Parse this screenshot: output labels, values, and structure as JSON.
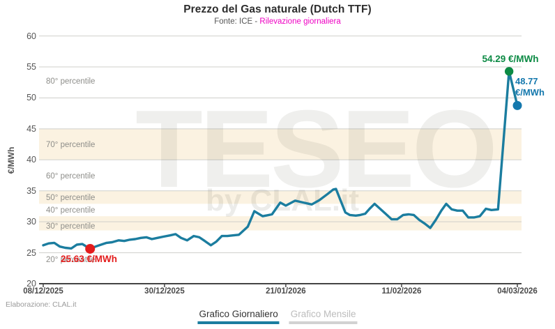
{
  "header": {
    "title": "Prezzo del Gas naturale (Dutch TTF)",
    "subtitle_prefix": "Fonte: ICE - ",
    "subtitle_highlight": "Rilevazione giornaliera"
  },
  "footer": {
    "credit": "Elaborazione: CLAL.it"
  },
  "tabs": [
    {
      "label": "Grafico Giornaliero",
      "active": true
    },
    {
      "label": "Grafico Mensile",
      "active": false
    }
  ],
  "colors": {
    "line": "#1b7d9f",
    "band": "#fbf2e1",
    "gridline": "#cfcfcb",
    "axis": "#444444",
    "min_annotation": "#e31c1c",
    "max_annotation": "#0c8a44",
    "last_annotation": "#1478ad",
    "subtitle_highlight": "#ee00c3",
    "active_tab_underline": "#1b7d9f"
  },
  "watermark": {
    "line1": "TESEO",
    "line2": "by CLAL.it"
  },
  "chart_data": {
    "type": "line",
    "title": "Prezzo del Gas naturale (Dutch TTF)",
    "subtitle": "Fonte: ICE - Rilevazione giornaliera",
    "ylabel": "€/MWh",
    "ylim": [
      20,
      60
    ],
    "yticks": [
      20,
      25,
      30,
      35,
      40,
      45,
      50,
      55,
      60
    ],
    "x_unit": "days since 08/12/2025",
    "xtick_labels": [
      "08/12/2025",
      "30/12/2025",
      "21/01/2026",
      "11/02/2026",
      "04/03/2026"
    ],
    "xtick_days": [
      0,
      22,
      44,
      65,
      86
    ],
    "grid": true,
    "legend": false,
    "percentile_labels": [
      {
        "label": "80° percentile",
        "value": 52.6
      },
      {
        "label": "70° percentile",
        "value": 42.4
      },
      {
        "label": "60° percentile",
        "value": 37.3
      },
      {
        "label": "50° percentile",
        "value": 33.8
      },
      {
        "label": "40° percentile",
        "value": 31.8
      },
      {
        "label": "30° percentile",
        "value": 29.2
      },
      {
        "label": "20° percentile",
        "value": 23.8
      }
    ],
    "bands": [
      {
        "from": 40.0,
        "to": 45.0
      },
      {
        "from": 32.9,
        "to": 35.0
      },
      {
        "from": 28.6,
        "to": 30.9
      }
    ],
    "series": [
      {
        "name": "Prezzo Gas naturale Dutch TTF (€/MWh)",
        "points": [
          [
            0,
            26.2
          ],
          [
            1,
            26.5
          ],
          [
            2,
            26.6
          ],
          [
            3,
            26.0
          ],
          [
            4,
            25.8
          ],
          [
            5.1,
            25.7
          ],
          [
            6.1,
            26.3
          ],
          [
            7.1,
            26.4
          ],
          [
            8.5,
            25.63
          ],
          [
            9.5,
            26.0
          ],
          [
            10.5,
            26.3
          ],
          [
            11.5,
            26.6
          ],
          [
            12.5,
            26.7
          ],
          [
            13.7,
            27.0
          ],
          [
            14.7,
            26.9
          ],
          [
            15.7,
            27.1
          ],
          [
            16.7,
            27.2
          ],
          [
            17.7,
            27.4
          ],
          [
            18.7,
            27.5
          ],
          [
            19.7,
            27.2
          ],
          [
            20.7,
            27.4
          ],
          [
            21.8,
            27.6
          ],
          [
            23,
            27.8
          ],
          [
            24,
            28.0
          ],
          [
            25,
            27.4
          ],
          [
            26.1,
            27.0
          ],
          [
            27.3,
            27.7
          ],
          [
            28.3,
            27.5
          ],
          [
            29.3,
            26.9
          ],
          [
            30.4,
            26.2
          ],
          [
            31.4,
            26.8
          ],
          [
            32.4,
            27.7
          ],
          [
            33.4,
            27.7
          ],
          [
            34.4,
            27.8
          ],
          [
            35.5,
            27.9
          ],
          [
            37.1,
            29.2
          ],
          [
            38.3,
            31.7
          ],
          [
            39.8,
            30.9
          ],
          [
            41.5,
            31.2
          ],
          [
            43,
            33.1
          ],
          [
            44,
            32.6
          ],
          [
            45.7,
            33.4
          ],
          [
            47.2,
            33.1
          ],
          [
            48.7,
            32.8
          ],
          [
            50.1,
            33.5
          ],
          [
            51.6,
            34.5
          ],
          [
            52.6,
            35.2
          ],
          [
            53.1,
            35.3
          ],
          [
            54.8,
            31.5
          ],
          [
            55.6,
            31.1
          ],
          [
            56.7,
            31.0
          ],
          [
            57.5,
            31.1
          ],
          [
            58.4,
            31.3
          ],
          [
            59.2,
            32.1
          ],
          [
            60.1,
            32.9
          ],
          [
            61.1,
            32.1
          ],
          [
            62.1,
            31.3
          ],
          [
            63.2,
            30.4
          ],
          [
            64.2,
            30.4
          ],
          [
            65.3,
            31.1
          ],
          [
            66.3,
            31.2
          ],
          [
            67.2,
            31.1
          ],
          [
            68.2,
            30.3
          ],
          [
            69.2,
            29.7
          ],
          [
            70.2,
            29.0
          ],
          [
            71.2,
            30.3
          ],
          [
            72.2,
            31.8
          ],
          [
            73.1,
            32.9
          ],
          [
            74.1,
            32.0
          ],
          [
            75.1,
            31.8
          ],
          [
            76.1,
            31.8
          ],
          [
            77.1,
            30.7
          ],
          [
            78.2,
            30.7
          ],
          [
            79.2,
            30.9
          ],
          [
            80.3,
            32.1
          ],
          [
            81.3,
            31.9
          ],
          [
            82.5,
            32.0
          ],
          [
            84.5,
            54.29
          ],
          [
            86,
            48.77
          ]
        ]
      }
    ],
    "annotations": {
      "min": {
        "label": "25.63 €/MWh",
        "day": 8.5,
        "value": 25.63
      },
      "max": {
        "label": "54.29 €/MWh",
        "day": 84.5,
        "value": 54.29
      },
      "last": {
        "label": "48.77 €/MWh",
        "day": 86,
        "value": 48.77
      }
    }
  }
}
